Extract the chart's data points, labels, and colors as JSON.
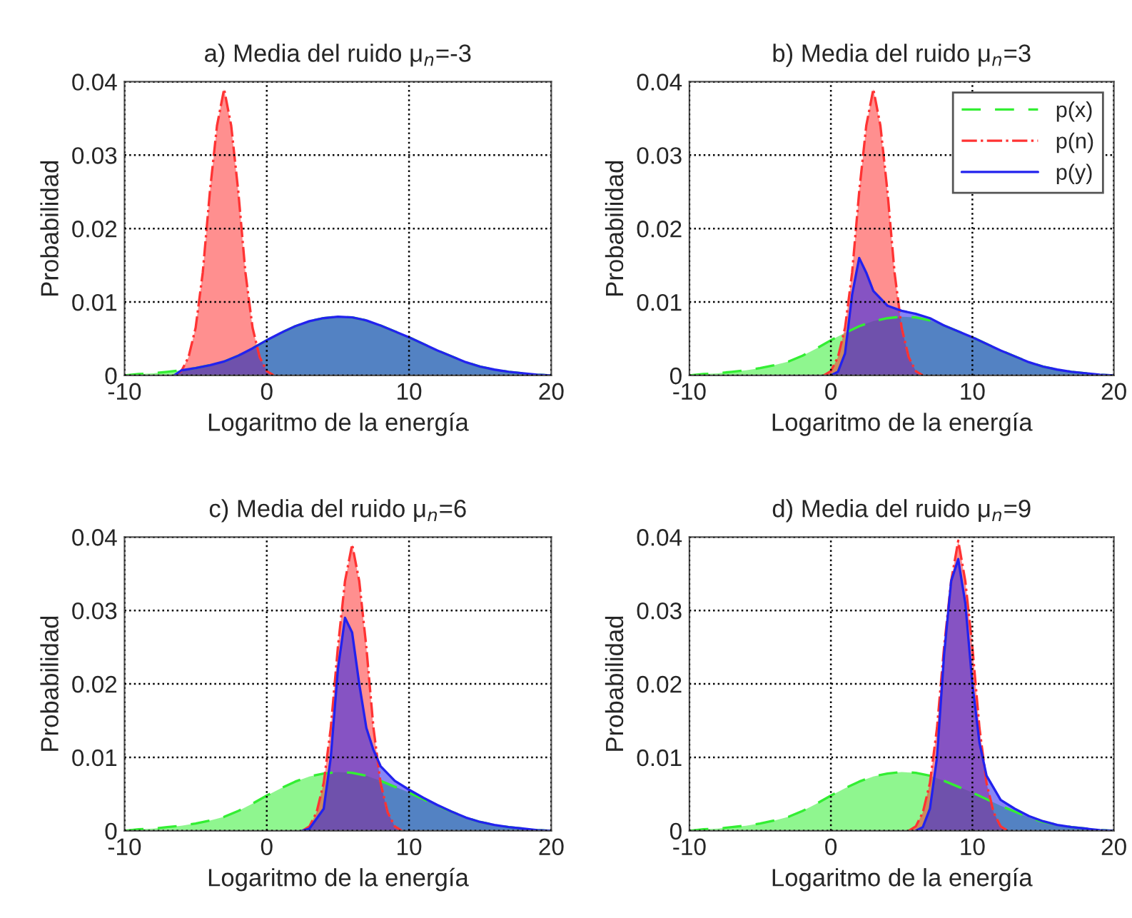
{
  "chart_data": [
    {
      "type": "area",
      "title": "a) Media del ruido μ$_{n}$=-3",
      "xlabel": "Logaritmo de la energía",
      "ylabel": "Probabilidad",
      "xlim": [
        -10,
        20
      ],
      "xticks": [
        -10,
        0,
        10,
        20
      ],
      "ylim": [
        0,
        0.04
      ],
      "yticks": [
        0,
        0.01,
        0.02,
        0.03,
        0.04
      ],
      "grid": true,
      "legend": false,
      "series": [
        {
          "color": "#33ee33",
          "line_style": "dashed",
          "x": [
            -10,
            -9,
            -8,
            -7,
            -6,
            -5,
            -4,
            -3,
            -2,
            -1,
            0,
            1,
            2,
            3,
            4,
            5,
            6,
            7,
            8,
            9,
            10,
            11,
            12,
            13,
            14,
            15,
            16,
            17,
            18,
            19,
            20
          ],
          "values": [
            0,
            0.0002,
            0.0003,
            0.0005,
            0.0007,
            0.001,
            0.0014,
            0.0019,
            0.0027,
            0.0037,
            0.0048,
            0.0058,
            0.0067,
            0.0074,
            0.0078,
            0.008,
            0.0079,
            0.0075,
            0.0068,
            0.006,
            0.0052,
            0.0043,
            0.0034,
            0.0026,
            0.0018,
            0.0012,
            0.0008,
            0.0005,
            0.0003,
            0.0001,
            0
          ]
        },
        {
          "color": "#ff3333",
          "line_style": "dashdot",
          "x": [
            -6.5,
            -6,
            -5.5,
            -5,
            -4.5,
            -4,
            -3.5,
            -3,
            -2.5,
            -2,
            -1.5,
            -1,
            -0.5,
            0,
            0.5
          ],
          "values": [
            0,
            0.0006,
            0.0025,
            0.0065,
            0.014,
            0.025,
            0.034,
            0.039,
            0.034,
            0.025,
            0.014,
            0.0065,
            0.0025,
            0.0006,
            0
          ]
        },
        {
          "color": "#2222ee",
          "line_style": "solid",
          "x": [
            -6.5,
            -6,
            -5,
            -4,
            -3,
            -2,
            -1,
            0,
            1,
            2,
            3,
            4,
            5,
            6,
            7,
            8,
            9,
            10,
            11,
            12,
            13,
            14,
            15,
            16,
            17,
            18,
            19,
            20
          ],
          "values": [
            0,
            0.0007,
            0.001,
            0.0014,
            0.0019,
            0.0027,
            0.0037,
            0.0048,
            0.0058,
            0.0067,
            0.0074,
            0.0078,
            0.008,
            0.0079,
            0.0075,
            0.0068,
            0.006,
            0.0052,
            0.0043,
            0.0034,
            0.0026,
            0.0018,
            0.0012,
            0.0008,
            0.0005,
            0.0003,
            0.0001,
            0
          ]
        }
      ]
    },
    {
      "type": "area",
      "title": "b) Media del ruido μ$_{n}$=3",
      "xlabel": "Logaritmo de la energía",
      "ylabel": "Probabilidad",
      "xlim": [
        -10,
        20
      ],
      "xticks": [
        -10,
        0,
        10,
        20
      ],
      "ylim": [
        0,
        0.04
      ],
      "yticks": [
        0,
        0.01,
        0.02,
        0.03,
        0.04
      ],
      "grid": true,
      "legend": "top right",
      "series": [
        {
          "name": "p(x)",
          "color": "#33ee33",
          "line_style": "dashed",
          "x": [
            -10,
            -9,
            -8,
            -7,
            -6,
            -5,
            -4,
            -3,
            -2,
            -1,
            0,
            1,
            2,
            3,
            4,
            5,
            6,
            7,
            8,
            9,
            10,
            11,
            12,
            13,
            14,
            15,
            16,
            17,
            18,
            19,
            20
          ],
          "values": [
            0,
            0.0002,
            0.0003,
            0.0005,
            0.0007,
            0.001,
            0.0014,
            0.0019,
            0.0027,
            0.0037,
            0.0048,
            0.0058,
            0.0067,
            0.0074,
            0.0078,
            0.008,
            0.0079,
            0.0075,
            0.0068,
            0.006,
            0.0052,
            0.0043,
            0.0034,
            0.0026,
            0.0018,
            0.0012,
            0.0008,
            0.0005,
            0.0003,
            0.0001,
            0
          ]
        },
        {
          "name": "p(n)",
          "color": "#ff3333",
          "line_style": "dashdot",
          "x": [
            -0.5,
            0,
            0.5,
            1,
            1.5,
            2,
            2.5,
            3,
            3.5,
            4,
            4.5,
            5,
            5.5,
            6,
            6.5
          ],
          "values": [
            0,
            0.0006,
            0.0025,
            0.0065,
            0.014,
            0.025,
            0.034,
            0.039,
            0.034,
            0.025,
            0.014,
            0.0065,
            0.0025,
            0.0006,
            0
          ]
        },
        {
          "name": "p(y)",
          "color": "#2222ee",
          "line_style": "solid",
          "x": [
            0,
            0.5,
            1,
            1.5,
            2,
            2.5,
            3,
            4,
            5,
            6,
            7,
            8,
            9,
            10,
            11,
            12,
            13,
            14,
            15,
            16,
            17,
            18,
            19,
            20
          ],
          "values": [
            0,
            0.0005,
            0.003,
            0.011,
            0.016,
            0.014,
            0.0115,
            0.0095,
            0.0088,
            0.0084,
            0.0078,
            0.0068,
            0.006,
            0.0052,
            0.0043,
            0.0034,
            0.0026,
            0.0018,
            0.0012,
            0.0008,
            0.0005,
            0.0003,
            0.0001,
            0
          ]
        }
      ]
    },
    {
      "type": "area",
      "title": "c) Media del ruido μ$_{n}$=6",
      "xlabel": "Logaritmo de la energía",
      "ylabel": "Probabilidad",
      "xlim": [
        -10,
        20
      ],
      "xticks": [
        -10,
        0,
        10,
        20
      ],
      "ylim": [
        0,
        0.04
      ],
      "yticks": [
        0,
        0.01,
        0.02,
        0.03,
        0.04
      ],
      "grid": true,
      "legend": false,
      "series": [
        {
          "color": "#33ee33",
          "line_style": "dashed",
          "x": [
            -10,
            -9,
            -8,
            -7,
            -6,
            -5,
            -4,
            -3,
            -2,
            -1,
            0,
            1,
            2,
            3,
            4,
            5,
            6,
            7,
            8,
            9,
            10,
            11,
            12,
            13,
            14,
            15,
            16,
            17,
            18,
            19,
            20
          ],
          "values": [
            0,
            0.0002,
            0.0003,
            0.0005,
            0.0007,
            0.001,
            0.0014,
            0.0019,
            0.0027,
            0.0037,
            0.0048,
            0.0058,
            0.0067,
            0.0074,
            0.0078,
            0.008,
            0.0079,
            0.0075,
            0.0068,
            0.006,
            0.0052,
            0.0043,
            0.0034,
            0.0026,
            0.0018,
            0.0012,
            0.0008,
            0.0005,
            0.0003,
            0.0001,
            0
          ]
        },
        {
          "color": "#ff3333",
          "line_style": "dashdot",
          "x": [
            2.5,
            3,
            3.5,
            4,
            4.5,
            5,
            5.5,
            6,
            6.5,
            7,
            7.5,
            8,
            8.5,
            9,
            9.5
          ],
          "values": [
            0,
            0.0006,
            0.0025,
            0.0065,
            0.014,
            0.025,
            0.034,
            0.039,
            0.034,
            0.025,
            0.014,
            0.0065,
            0.0025,
            0.0006,
            0
          ]
        },
        {
          "color": "#2222ee",
          "line_style": "solid",
          "x": [
            2.5,
            3,
            4,
            4.5,
            5,
            5.5,
            6,
            6.5,
            7,
            7.5,
            8,
            9,
            10,
            11,
            12,
            13,
            14,
            15,
            16,
            17,
            18,
            19,
            20
          ],
          "values": [
            0,
            0.0003,
            0.003,
            0.01,
            0.022,
            0.029,
            0.027,
            0.02,
            0.014,
            0.011,
            0.0088,
            0.0068,
            0.0056,
            0.0045,
            0.0035,
            0.0026,
            0.0018,
            0.0012,
            0.0008,
            0.0005,
            0.0003,
            0.0001,
            0
          ]
        }
      ]
    },
    {
      "type": "area",
      "title": "d) Media del ruido μ$_{n}$=9",
      "xlabel": "Logaritmo de la energía",
      "ylabel": "Probabilidad",
      "xlim": [
        -10,
        20
      ],
      "xticks": [
        -10,
        0,
        10,
        20
      ],
      "ylim": [
        0,
        0.04
      ],
      "yticks": [
        0,
        0.01,
        0.02,
        0.03,
        0.04
      ],
      "grid": true,
      "legend": false,
      "series": [
        {
          "color": "#33ee33",
          "line_style": "dashed",
          "x": [
            -10,
            -9,
            -8,
            -7,
            -6,
            -5,
            -4,
            -3,
            -2,
            -1,
            0,
            1,
            2,
            3,
            4,
            5,
            6,
            7,
            8,
            9,
            10,
            11,
            12,
            13,
            14,
            15,
            16,
            17,
            18,
            19,
            20
          ],
          "values": [
            0,
            0.0002,
            0.0003,
            0.0005,
            0.0007,
            0.001,
            0.0014,
            0.0019,
            0.0027,
            0.0037,
            0.0048,
            0.0058,
            0.0067,
            0.0074,
            0.0078,
            0.008,
            0.0079,
            0.0075,
            0.0068,
            0.006,
            0.0052,
            0.0043,
            0.0034,
            0.0026,
            0.0018,
            0.0012,
            0.0008,
            0.0005,
            0.0003,
            0.0001,
            0
          ]
        },
        {
          "color": "#ff3333",
          "line_style": "dashdot",
          "x": [
            5.5,
            6,
            6.5,
            7,
            7.5,
            8,
            8.5,
            9,
            9.5,
            10,
            10.5,
            11,
            11.5,
            12,
            12.5
          ],
          "values": [
            0,
            0.0006,
            0.0025,
            0.0065,
            0.014,
            0.025,
            0.034,
            0.0395,
            0.034,
            0.025,
            0.014,
            0.0065,
            0.0025,
            0.0006,
            0
          ]
        },
        {
          "color": "#2222ee",
          "line_style": "solid",
          "x": [
            6,
            6.5,
            7,
            7.5,
            8,
            8.5,
            9,
            9.5,
            10,
            10.5,
            11,
            12,
            13,
            14,
            15,
            16,
            17,
            18,
            19,
            20
          ],
          "values": [
            0,
            0.0005,
            0.003,
            0.01,
            0.024,
            0.034,
            0.037,
            0.031,
            0.02,
            0.012,
            0.0075,
            0.0042,
            0.003,
            0.002,
            0.0013,
            0.0008,
            0.0005,
            0.0003,
            0.0001,
            0
          ]
        }
      ]
    }
  ]
}
